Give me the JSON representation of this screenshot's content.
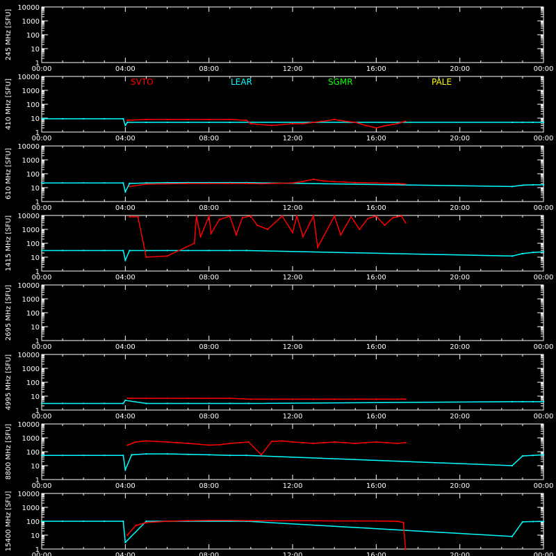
{
  "chart_data": {
    "type": "scatter",
    "background": "#000000",
    "foreground": "#ffffff",
    "x_ticks": [
      "00:00",
      "04:00",
      "08:00",
      "12:00",
      "16:00",
      "20:00",
      "00:00"
    ],
    "y_ticks": [
      "10000",
      "1000",
      "100",
      "10",
      "1"
    ],
    "ylim": [
      1,
      10000
    ],
    "y_scale": "log",
    "legend": [
      {
        "name": "SVTO",
        "color": "#ff0000"
      },
      {
        "name": "LEAR",
        "color": "#00ffff"
      },
      {
        "name": "SGMR",
        "color": "#00ff00"
      },
      {
        "name": "PALE",
        "color": "#ffff00"
      }
    ],
    "panels": [
      {
        "ylabel": "245 MHz [SFU]",
        "series": []
      },
      {
        "ylabel": "410 MHz [SFU]",
        "legend": true,
        "series": [
          {
            "name": "LEAR",
            "color": "#00ffff",
            "x": [
              0,
              1,
              2,
              3,
              3.9,
              4.0,
              4.1,
              5,
              6,
              7,
              8,
              9,
              9.9,
              22.5,
              23,
              23.5,
              24
            ],
            "y": [
              9,
              9,
              9,
              9,
              9,
              3,
              5,
              5,
              5,
              5,
              5,
              5,
              5,
              5,
              5,
              5,
              5
            ]
          },
          {
            "name": "SVTO",
            "color": "#ff0000",
            "x": [
              4.1,
              5,
              6,
              7,
              8,
              9,
              9.8,
              10,
              11,
              12,
              12.5,
              13,
              13.5,
              14,
              14.5,
              15,
              15.5,
              16,
              16.5,
              17,
              17.4
            ],
            "y": [
              7,
              8,
              8,
              8,
              8,
              8,
              7,
              4,
              3,
              4,
              4,
              5,
              6,
              8,
              6,
              5,
              3,
              2,
              3,
              4,
              6
            ]
          }
        ]
      },
      {
        "ylabel": "610 MHz [SFU]",
        "series": [
          {
            "name": "LEAR",
            "color": "#00ffff",
            "x": [
              0,
              1,
              2,
              3,
              3.9,
              4.0,
              4.2,
              5,
              6,
              7,
              8,
              9,
              9.8,
              22.5,
              23,
              23.5,
              24
            ],
            "y": [
              22,
              22,
              22,
              22,
              22,
              5,
              20,
              22,
              23,
              23,
              23,
              23,
              23,
              12,
              15,
              16,
              16
            ]
          },
          {
            "name": "SVTO",
            "color": "#ff0000",
            "x": [
              4.2,
              5,
              6,
              7,
              8,
              9,
              9.8,
              10.5,
              11,
              12,
              12.5,
              13,
              13.5,
              14,
              14.5,
              15,
              16,
              17,
              17.4
            ],
            "y": [
              12,
              18,
              19,
              20,
              20,
              20,
              20,
              19,
              20,
              22,
              28,
              40,
              30,
              27,
              25,
              23,
              22,
              20,
              18
            ]
          }
        ]
      },
      {
        "ylabel": "1415 MHz [SFU]",
        "series": [
          {
            "name": "LEAR",
            "color": "#00ffff",
            "x": [
              0,
              1,
              2,
              3,
              3.9,
              4.0,
              4.2,
              5,
              6,
              7,
              8,
              9,
              9.8,
              22.5,
              23,
              23.5,
              24
            ],
            "y": [
              30,
              30,
              30,
              30,
              30,
              6,
              30,
              30,
              30,
              30,
              30,
              30,
              30,
              12,
              18,
              22,
              24
            ]
          },
          {
            "name": "SVTO",
            "color": "#ff0000",
            "x": [
              4.2,
              4.6,
              5,
              6,
              7.3,
              7.4,
              7.6,
              8.0,
              8.1,
              8.5,
              9.0,
              9.3,
              9.6,
              10.0,
              10.3,
              10.8,
              11.5,
              12.0,
              12.2,
              12.5,
              13.0,
              13.2,
              14.0,
              14.3,
              14.8,
              15.2,
              15.6,
              16.0,
              16.4,
              16.8,
              17.2,
              17.4
            ],
            "y": [
              8000,
              8000,
              10,
              12,
              100,
              9000,
              300,
              9000,
              500,
              5000,
              9000,
              400,
              7000,
              9000,
              2000,
              1000,
              9000,
              600,
              9000,
              300,
              9000,
              50,
              9000,
              400,
              8000,
              1000,
              6000,
              9000,
              2000,
              7000,
              9000,
              3000
            ]
          }
        ]
      },
      {
        "ylabel": "2695 MHz [SFU]",
        "series": []
      },
      {
        "ylabel": "4995 MHz [SFU]",
        "series": [
          {
            "name": "LEAR",
            "color": "#00ffff",
            "x": [
              0,
              1,
              2,
              3,
              3.9,
              4.0,
              5,
              6,
              7,
              8,
              9,
              9.9,
              22.5,
              23,
              23.5,
              24
            ],
            "y": [
              3,
              3,
              3,
              3,
              3,
              5,
              3,
              3,
              3,
              3,
              3,
              3,
              4,
              4,
              4,
              4
            ]
          },
          {
            "name": "SVTO",
            "color": "#ff0000",
            "x": [
              4.1,
              5,
              6,
              7,
              8,
              9,
              10,
              11,
              12,
              13,
              14,
              15,
              16,
              17,
              17.4
            ],
            "y": [
              7,
              7,
              7,
              7,
              7,
              7,
              6,
              6,
              6,
              6,
              6,
              6,
              6,
              6,
              6
            ]
          }
        ]
      },
      {
        "ylabel": "8800 MHz [SFU]",
        "series": [
          {
            "name": "LEAR",
            "color": "#00ffff",
            "x": [
              0,
              1,
              2,
              3,
              3.9,
              4.0,
              4.3,
              5,
              6,
              7,
              8,
              9,
              9.8,
              22.5,
              23,
              23.5,
              24
            ],
            "y": [
              55,
              55,
              55,
              55,
              55,
              5,
              60,
              70,
              70,
              65,
              60,
              55,
              55,
              10,
              50,
              55,
              60
            ]
          },
          {
            "name": "SVTO",
            "color": "#ff0000",
            "x": [
              4.1,
              4.5,
              5,
              5.5,
              6,
              6.5,
              7,
              7.5,
              8,
              8.5,
              9,
              9.5,
              9.9,
              10.5,
              11,
              11.5,
              12,
              12.5,
              13,
              13.5,
              14,
              14.5,
              15,
              15.5,
              16,
              16.5,
              17,
              17.4
            ],
            "y": [
              300,
              500,
              600,
              550,
              500,
              450,
              400,
              350,
              300,
              320,
              400,
              450,
              500,
              60,
              550,
              600,
              500,
              450,
              400,
              450,
              500,
              450,
              400,
              450,
              500,
              450,
              400,
              450
            ]
          }
        ]
      },
      {
        "ylabel": "15400 MHz [SFU]",
        "series": [
          {
            "name": "LEAR",
            "color": "#00ffff",
            "x": [
              0,
              1,
              2,
              3,
              3.9,
              4.0,
              5,
              6,
              7,
              8,
              9,
              9.8,
              22.5,
              23,
              23.5,
              24
            ],
            "y": [
              100,
              100,
              100,
              100,
              100,
              3,
              100,
              100,
              100,
              100,
              100,
              100,
              8,
              90,
              95,
              95
            ]
          },
          {
            "name": "SVTO",
            "color": "#ff0000",
            "x": [
              4.1,
              4.5,
              5,
              6,
              7,
              8,
              9,
              10,
              11,
              12,
              13,
              14,
              15,
              16,
              17,
              17.3,
              17.4
            ],
            "y": [
              10,
              50,
              80,
              100,
              110,
              115,
              115,
              110,
              110,
              110,
              108,
              105,
              105,
              105,
              100,
              80,
              1
            ]
          }
        ]
      }
    ]
  }
}
